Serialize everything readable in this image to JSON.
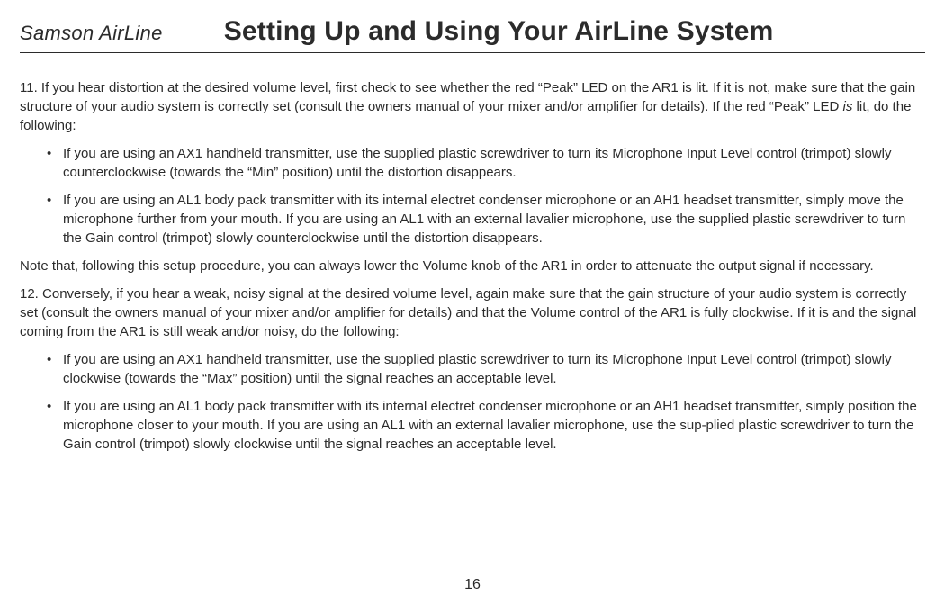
{
  "header": {
    "left": "Samson AirLine",
    "right": "Setting Up and Using Your AirLine System"
  },
  "p11_intro_a": "11.  If you hear distortion at the desired volume level, first check to see whether the red “Peak” LED on the AR1 is lit.  If it is not, make sure that the gain structure of your audio system is correctly set (consult the owners manual of your mixer and/or amplifier for details).  If the red “Peak” LED ",
  "p11_intro_is": "is",
  "p11_intro_b": " lit, do the following:",
  "p11_b1": "If you are using an AX1 handheld transmitter, use the supplied plastic screwdriver to turn its Microphone Input Level control (trimpot) slowly counterclockwise (towards the “Min” position) until the distortion disappears.",
  "p11_b2": "If you are using an AL1 body pack transmitter with its internal electret condenser microphone or an AH1 headset transmitter, simply move the microphone further from your mouth.  If you are using an AL1 with an external lavalier microphone, use the supplied plastic screwdriver to turn the Gain  control (trimpot) slowly counterclockwise until the distortion disappears.",
  "note_text": "Note that, following this setup procedure, you can always lower the Volume knob of the AR1 in order to attenuate the output signal   if necessary.",
  "p12_intro": "12.  Conversely, if you hear a weak, noisy signal at the desired volume level, again make sure that the gain structure of your audio system is correctly set (consult the owners manual of your mixer and/or amplifier for details) and that the Volume control of the AR1  is fully clockwise.  If it is and the signal coming from the AR1 is still weak and/or noisy, do the following:",
  "p12_b1": "If you are using an AX1 handheld transmitter, use the supplied plastic screwdriver to turn its Microphone Input Level control (trimpot) slowly clockwise (towards the “Max” position) until the signal reaches an acceptable level.",
  "p12_b2": "If you are using an AL1 body pack transmitter with its internal electret condenser microphone or an AH1 headset transmitter, simply position the microphone closer to your mouth.  If you are using an AL1 with an external lavalier microphone, use the  sup-plied plastic screwdriver to turn the Gain  control (trimpot) slowly clockwise until the signal reaches an acceptable level.",
  "page_number": "16"
}
